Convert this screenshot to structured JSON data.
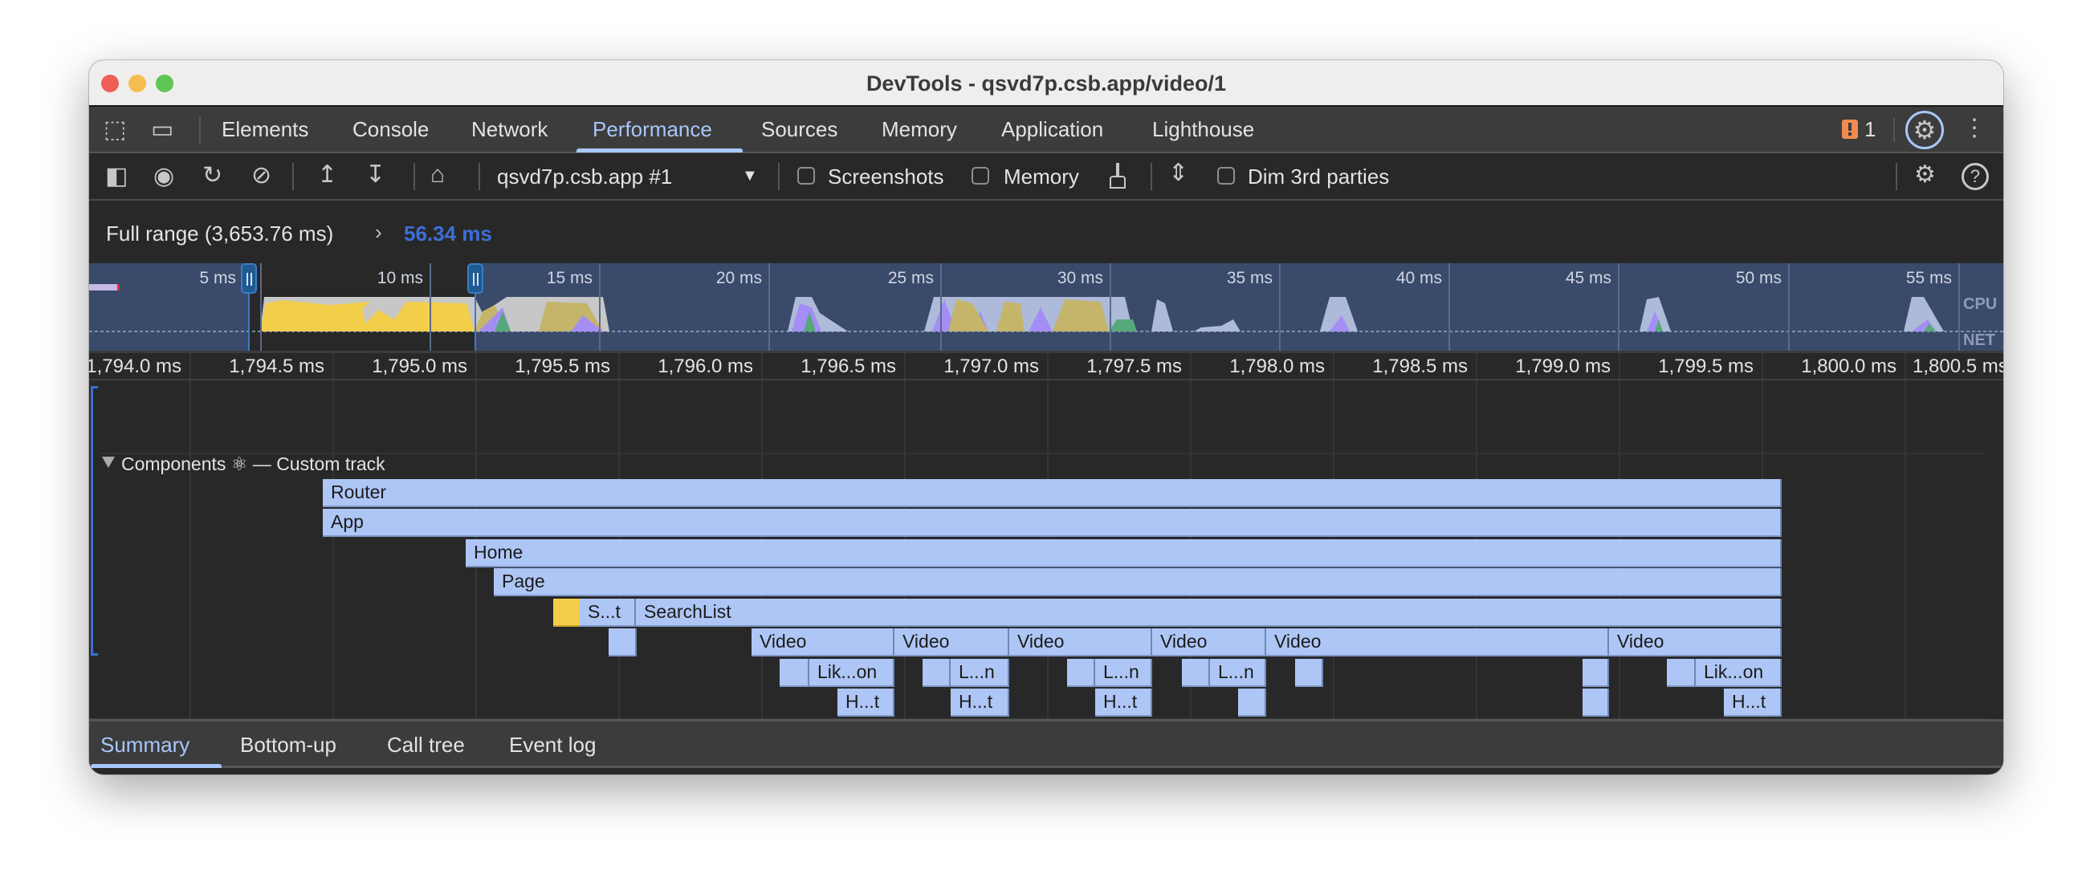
{
  "window": {
    "title": "DevTools - qsvd7p.csb.app/video/1"
  },
  "tabs": [
    "Elements",
    "Console",
    "Network",
    "Performance",
    "Sources",
    "Memory",
    "Application",
    "Lighthouse"
  ],
  "active_tab": "Performance",
  "issues": {
    "count": "1",
    "icon": "issue-warning-icon",
    "color": "#f28b50"
  },
  "toolbar": {
    "target": "qsvd7p.csb.app #1",
    "screenshots": "Screenshots",
    "memory": "Memory",
    "dim": "Dim 3rd parties",
    "screenshots_checked": false,
    "memory_checked": false,
    "dim_checked": false
  },
  "breadcrumb": {
    "full": "Full range (3,653.76 ms)",
    "current": "56.34 ms"
  },
  "overview": {
    "ticks": [
      "5 ms",
      "10 ms",
      "15 ms",
      "20 ms",
      "25 ms",
      "30 ms",
      "35 ms",
      "40 ms",
      "45 ms",
      "50 ms",
      "55 ms"
    ],
    "cpu_label": "CPU",
    "net_label": "NET"
  },
  "ruler": [
    "1,794.0 ms",
    "1,794.5 ms",
    "1,795.0 ms",
    "1,795.5 ms",
    "1,796.0 ms",
    "1,796.5 ms",
    "1,797.0 ms",
    "1,797.5 ms",
    "1,798.0 ms",
    "1,798.5 ms",
    "1,799.0 ms",
    "1,799.5 ms",
    "1,800.0 ms",
    "1,800.5 ms"
  ],
  "track": {
    "title": "Components ⚛ — Custom track",
    "entries": {
      "router": "Router",
      "app": "App",
      "home": "Home",
      "page": "Page",
      "st": "S...t",
      "searchlist": "SearchList",
      "video": "Video",
      "likon": "Lik...on",
      "ln": "L...n",
      "ht": "H...t"
    }
  },
  "colors": {
    "accent": "#a8c7fa",
    "entry": "#aec6f5",
    "scripting": "#f2ce4b",
    "breadcrumb_current": "#3b6fd9"
  },
  "bottom_tabs": [
    "Summary",
    "Bottom-up",
    "Call tree",
    "Event log"
  ],
  "active_bottom_tab": "Summary"
}
